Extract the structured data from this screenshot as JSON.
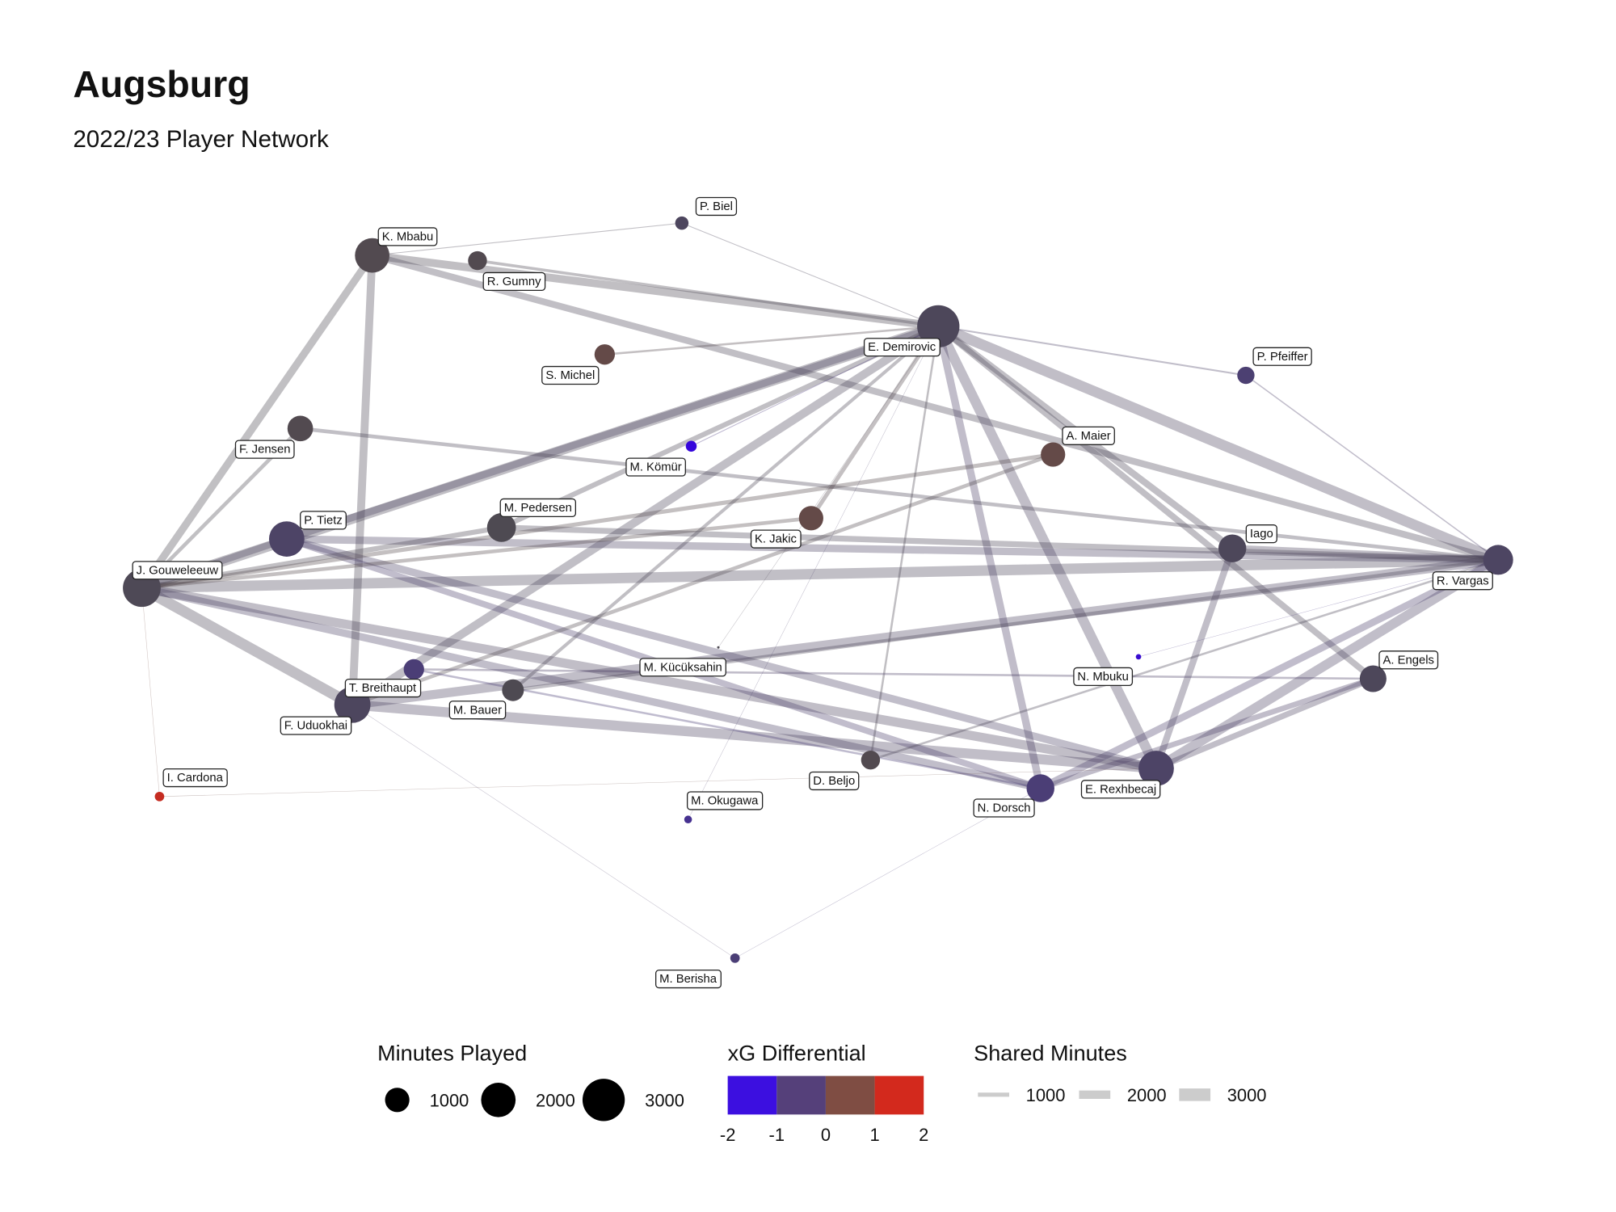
{
  "header": {
    "title": "Augsburg",
    "subtitle": "2022/23 Player Network"
  },
  "nodes": [
    {
      "label": "K. Mbabu",
      "minutes": 2000,
      "xg": 0.1
    },
    {
      "label": "R. Gumny",
      "minutes": 600,
      "xg": 0.1
    },
    {
      "label": "P. Biel",
      "minutes": 300,
      "xg": -0.3
    },
    {
      "label": "E. Demirovic",
      "minutes": 3000,
      "xg": -0.2
    },
    {
      "label": "S. Michel",
      "minutes": 700,
      "xg": 0.5
    },
    {
      "label": "P. Pfeiffer",
      "minutes": 500,
      "xg": -0.8
    },
    {
      "label": "F. Jensen",
      "minutes": 1100,
      "xg": 0.1
    },
    {
      "label": "M. Kömür",
      "minutes": 200,
      "xg": -1.9
    },
    {
      "label": "A. Maier",
      "minutes": 1000,
      "xg": 0.5
    },
    {
      "label": "M. Pedersen",
      "minutes": 1400,
      "xg": 0
    },
    {
      "label": "K. Jakic",
      "minutes": 1000,
      "xg": 0.5
    },
    {
      "label": "P. Tietz",
      "minutes": 2100,
      "xg": -0.5
    },
    {
      "label": "Iago",
      "minutes": 1300,
      "xg": -0.2
    },
    {
      "label": "R. Vargas",
      "minutes": 1500,
      "xg": -0.4
    },
    {
      "label": "J. Gouweleeuw",
      "minutes": 2400,
      "xg": -0.1
    },
    {
      "label": "M. Kücüksahin",
      "minutes": 10,
      "xg": 0
    },
    {
      "label": "N. Mbuku",
      "minutes": 50,
      "xg": -1.8
    },
    {
      "label": "T. Breithaupt",
      "minutes": 700,
      "xg": -0.9
    },
    {
      "label": "A. Engels",
      "minutes": 1200,
      "xg": -0.2
    },
    {
      "label": "M. Bauer",
      "minutes": 800,
      "xg": 0
    },
    {
      "label": "F. Uduokhai",
      "minutes": 2200,
      "xg": -0.3
    },
    {
      "label": "D. Beljo",
      "minutes": 600,
      "xg": 0.1
    },
    {
      "label": "E. Rexhbecaj",
      "minutes": 2100,
      "xg": -0.5
    },
    {
      "label": "N. Dorsch",
      "minutes": 1300,
      "xg": -0.9
    },
    {
      "label": "I. Cardona",
      "minutes": 150,
      "xg": 1.8
    },
    {
      "label": "M. Okugawa",
      "minutes": 100,
      "xg": -1.2
    },
    {
      "label": "M. Berisha",
      "minutes": 150,
      "xg": -0.9
    }
  ],
  "edges": [
    {
      "source": 14,
      "target": 20,
      "minutes": 2600
    },
    {
      "source": 14,
      "target": 3,
      "minutes": 2400
    },
    {
      "source": 14,
      "target": 0,
      "minutes": 1800
    },
    {
      "source": 14,
      "target": 13,
      "minutes": 2500
    },
    {
      "source": 14,
      "target": 11,
      "minutes": 1600
    },
    {
      "source": 14,
      "target": 22,
      "minutes": 2200
    },
    {
      "source": 14,
      "target": 23,
      "minutes": 1800
    },
    {
      "source": 20,
      "target": 0,
      "minutes": 1900
    },
    {
      "source": 20,
      "target": 22,
      "minutes": 2400
    },
    {
      "source": 20,
      "target": 13,
      "minutes": 2200
    },
    {
      "source": 20,
      "target": 3,
      "minutes": 2000
    },
    {
      "source": 0,
      "target": 3,
      "minutes": 1900
    },
    {
      "source": 0,
      "target": 13,
      "minutes": 1600
    },
    {
      "source": 3,
      "target": 13,
      "minutes": 2500
    },
    {
      "source": 3,
      "target": 22,
      "minutes": 2400
    },
    {
      "source": 3,
      "target": 23,
      "minutes": 1800
    },
    {
      "source": 3,
      "target": 11,
      "minutes": 1700
    },
    {
      "source": 3,
      "target": 12,
      "minutes": 1600
    },
    {
      "source": 3,
      "target": 18,
      "minutes": 1500
    },
    {
      "source": 13,
      "target": 22,
      "minutes": 2300
    },
    {
      "source": 13,
      "target": 11,
      "minutes": 1800
    },
    {
      "source": 13,
      "target": 12,
      "minutes": 1700
    },
    {
      "source": 13,
      "target": 23,
      "minutes": 1700
    },
    {
      "source": 13,
      "target": 9,
      "minutes": 1400
    },
    {
      "source": 22,
      "target": 11,
      "minutes": 1800
    },
    {
      "source": 22,
      "target": 12,
      "minutes": 1600
    },
    {
      "source": 22,
      "target": 18,
      "minutes": 1400
    },
    {
      "source": 23,
      "target": 11,
      "minutes": 1500
    },
    {
      "source": 23,
      "target": 18,
      "minutes": 1300
    },
    {
      "source": 9,
      "target": 14,
      "minutes": 1200
    },
    {
      "source": 9,
      "target": 3,
      "minutes": 1200
    },
    {
      "source": 6,
      "target": 14,
      "minutes": 900
    },
    {
      "source": 6,
      "target": 13,
      "minutes": 900
    },
    {
      "source": 8,
      "target": 14,
      "minutes": 1000
    },
    {
      "source": 8,
      "target": 20,
      "minutes": 900
    },
    {
      "source": 10,
      "target": 3,
      "minutes": 1000
    },
    {
      "source": 10,
      "target": 14,
      "minutes": 900
    },
    {
      "source": 19,
      "target": 13,
      "minutes": 900
    },
    {
      "source": 19,
      "target": 3,
      "minutes": 800
    },
    {
      "source": 21,
      "target": 3,
      "minutes": 500
    },
    {
      "source": 21,
      "target": 13,
      "minutes": 500
    },
    {
      "source": 4,
      "target": 3,
      "minutes": 500
    },
    {
      "source": 1,
      "target": 3,
      "minutes": 700
    },
    {
      "source": 5,
      "target": 3,
      "minutes": 400
    },
    {
      "source": 5,
      "target": 13,
      "minutes": 300
    },
    {
      "source": 2,
      "target": 3,
      "minutes": 200
    },
    {
      "source": 2,
      "target": 0,
      "minutes": 200
    },
    {
      "source": 17,
      "target": 23,
      "minutes": 500
    },
    {
      "source": 17,
      "target": 18,
      "minutes": 500
    },
    {
      "source": 7,
      "target": 3,
      "minutes": 200
    },
    {
      "source": 24,
      "target": 22,
      "minutes": 50
    },
    {
      "source": 24,
      "target": 14,
      "minutes": 60
    },
    {
      "source": 25,
      "target": 3,
      "minutes": 40
    },
    {
      "source": 26,
      "target": 23,
      "minutes": 80
    },
    {
      "source": 26,
      "target": 20,
      "minutes": 60
    },
    {
      "source": 16,
      "target": 13,
      "minutes": 60
    },
    {
      "source": 15,
      "target": 3,
      "minutes": 30
    }
  ],
  "legend": {
    "size": {
      "title": "Minutes Played",
      "values": [
        1000,
        2000,
        3000
      ]
    },
    "color": {
      "title": "xG Differential",
      "ticks": [
        -2,
        -1,
        0,
        1,
        2
      ],
      "colors": [
        "#3c0fe0",
        "#55407a",
        "#7f4d43",
        "#d3291d"
      ],
      "stops": [
        "#3300e6",
        "#4b3d7a",
        "#4e4a52",
        "#7a4a3e",
        "#d8241a"
      ]
    },
    "width": {
      "title": "Shared Minutes",
      "values": [
        1000,
        2000,
        3000
      ]
    }
  }
}
